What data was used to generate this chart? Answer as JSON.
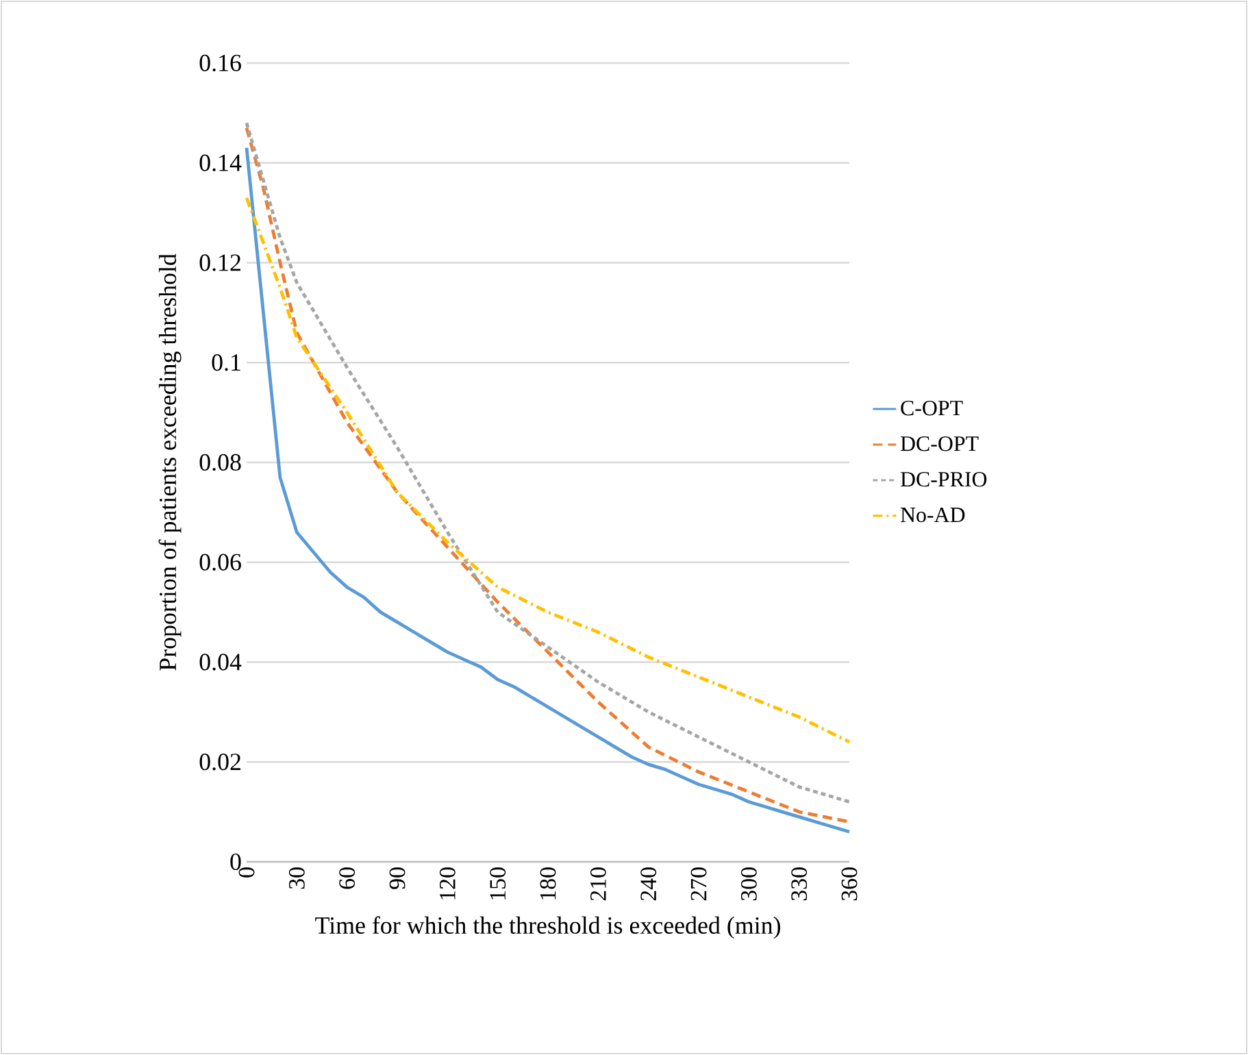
{
  "chart_data": {
    "type": "line",
    "xlabel": "Time for which the threshold is exceeded (min)",
    "ylabel": "Proportion of patients exceeding threshold",
    "xlim": [
      0,
      360
    ],
    "xticks": [
      0,
      30,
      60,
      90,
      120,
      150,
      180,
      210,
      240,
      270,
      300,
      330,
      360
    ],
    "ylim": [
      0,
      0.16
    ],
    "yticks": [
      0,
      0.02,
      0.04,
      0.06,
      0.08,
      0.1,
      0.12,
      0.14,
      0.16
    ],
    "grid": "y",
    "legend": "right",
    "marker": "none",
    "series": [
      {
        "name": "C-OPT",
        "color": "#5b9bd5",
        "line_style": "solid",
        "x": [
          0,
          10,
          20,
          30,
          40,
          50,
          60,
          70,
          80,
          90,
          100,
          110,
          120,
          130,
          140,
          150,
          160,
          170,
          180,
          190,
          200,
          210,
          220,
          230,
          240,
          250,
          260,
          270,
          280,
          290,
          300,
          310,
          320,
          330,
          340,
          350,
          360
        ],
        "values": [
          0.143,
          0.11,
          0.077,
          0.066,
          0.062,
          0.058,
          0.055,
          0.053,
          0.05,
          0.048,
          0.046,
          0.044,
          0.042,
          0.0405,
          0.039,
          0.0365,
          0.035,
          0.033,
          0.031,
          0.029,
          0.027,
          0.025,
          0.023,
          0.021,
          0.0195,
          0.0185,
          0.017,
          0.0155,
          0.0145,
          0.0135,
          0.012,
          0.011,
          0.01,
          0.009,
          0.008,
          0.007,
          0.006
        ]
      },
      {
        "name": "DC-OPT",
        "color": "#ed7d31",
        "line_style": "dashed",
        "x": [
          0,
          10,
          20,
          30,
          60,
          90,
          120,
          150,
          180,
          210,
          240,
          270,
          300,
          330,
          360
        ],
        "values": [
          0.147,
          0.135,
          0.12,
          0.106,
          0.088,
          0.074,
          0.063,
          0.052,
          0.042,
          0.032,
          0.023,
          0.018,
          0.014,
          0.01,
          0.008
        ]
      },
      {
        "name": "DC-PRIO",
        "color": "#a5a5a5",
        "line_style": "dotted",
        "x": [
          0,
          20,
          30,
          60,
          90,
          120,
          150,
          180,
          210,
          240,
          270,
          300,
          330,
          360
        ],
        "values": [
          0.148,
          0.125,
          0.116,
          0.099,
          0.083,
          0.066,
          0.05,
          0.043,
          0.036,
          0.03,
          0.025,
          0.02,
          0.015,
          0.012
        ]
      },
      {
        "name": "No-AD",
        "color": "#ffc000",
        "line_style": "dashdot",
        "x": [
          0,
          20,
          30,
          60,
          90,
          120,
          150,
          180,
          210,
          240,
          270,
          300,
          330,
          360
        ],
        "values": [
          0.133,
          0.115,
          0.105,
          0.09,
          0.074,
          0.064,
          0.055,
          0.05,
          0.046,
          0.041,
          0.037,
          0.033,
          0.029,
          0.024
        ]
      }
    ]
  }
}
